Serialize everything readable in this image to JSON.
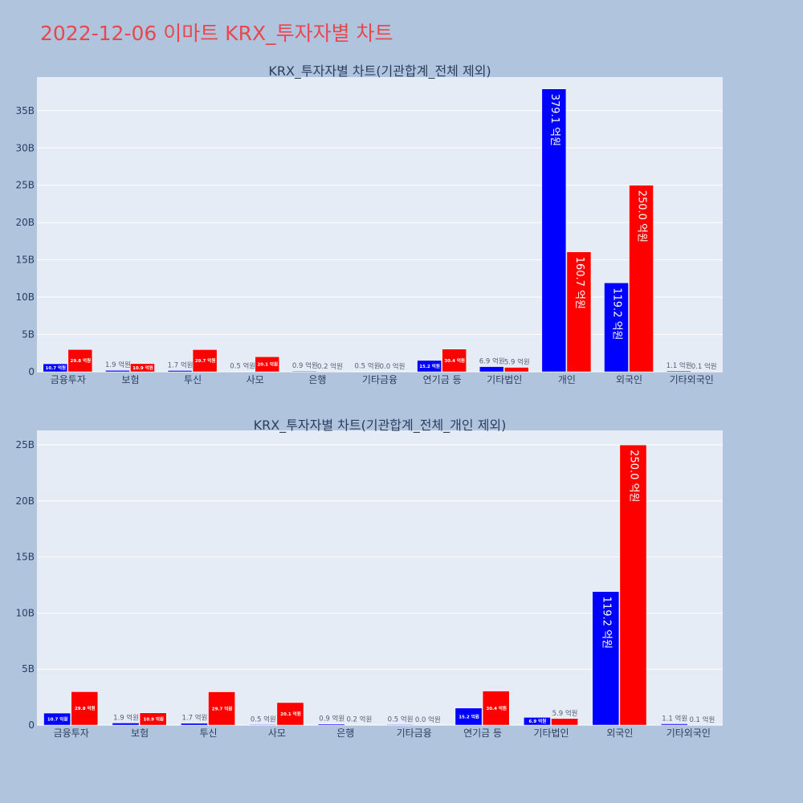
{
  "page": {
    "title": "2022-12-06 이마트 KRX_투자자별 차트"
  },
  "colors": {
    "buy": "#0000ff",
    "sell": "#ff0000",
    "plot_bg": "#e5ecf6",
    "page_bg": "#b0c4de",
    "title": "#e8474f"
  },
  "chart_data": [
    {
      "type": "bar",
      "title": "KRX_투자자별 차트(기관합계_전체 제외)",
      "categories": [
        "금융투자",
        "보험",
        "투신",
        "사모",
        "은행",
        "기타금융",
        "연기금 등",
        "기타법인",
        "개인",
        "외국인",
        "기타외국인"
      ],
      "series": [
        {
          "values": [
            1.07,
            0.19,
            0.17,
            0.05,
            0.09,
            0.05,
            1.52,
            0.69,
            37.91,
            11.92,
            0.11
          ],
          "labels": [
            "10.7 억원",
            "1.9 억원",
            "1.7 억원",
            "0.5 억원",
            "0.9 억원",
            "0.5 억원",
            "15.2 억원",
            "6.9 억원",
            "379.1 억원",
            "119.2 억원",
            "1.1 억원"
          ]
        },
        {
          "values": [
            2.98,
            1.09,
            2.97,
            2.01,
            0.02,
            0.0,
            3.04,
            0.59,
            16.07,
            25.0,
            0.01
          ],
          "labels": [
            "29.8 억원",
            "10.9 억원",
            "29.7 억원",
            "20.1 억원",
            "0.2 억원",
            "0.0 억원",
            "30.4 억원",
            "5.9 억원",
            "160.7 억원",
            "250.0 억원",
            "0.1 억원"
          ]
        }
      ],
      "yticks": [
        0,
        5,
        10,
        15,
        20,
        25,
        30,
        35
      ],
      "ytick_labels": [
        "0",
        "5B",
        "10B",
        "15B",
        "20B",
        "25B",
        "30B",
        "35B"
      ],
      "ylim": [
        0,
        39.5
      ],
      "grid": true
    },
    {
      "type": "bar",
      "title": "KRX_투자자별 차트(기관합계_전체_개인 제외)",
      "categories": [
        "금융투자",
        "보험",
        "투신",
        "사모",
        "은행",
        "기타금융",
        "연기금 등",
        "기타법인",
        "외국인",
        "기타외국인"
      ],
      "series": [
        {
          "values": [
            1.07,
            0.19,
            0.17,
            0.05,
            0.09,
            0.05,
            1.52,
            0.69,
            11.92,
            0.11
          ],
          "labels": [
            "10.7 억원",
            "1.9 억원",
            "1.7 억원",
            "0.5 억원",
            "0.9 억원",
            "0.5 억원",
            "15.2 억원",
            "6.9 억원",
            "119.2 억원",
            "1.1 억원"
          ]
        },
        {
          "values": [
            2.98,
            1.09,
            2.97,
            2.01,
            0.02,
            0.0,
            3.04,
            0.59,
            25.0,
            0.01
          ],
          "labels": [
            "29.8 억원",
            "10.9 억원",
            "29.7 억원",
            "20.1 억원",
            "0.2 억원",
            "0.0 억원",
            "30.4 억원",
            "5.9 억원",
            "250.0 억원",
            "0.1 억원"
          ]
        }
      ],
      "yticks": [
        0,
        5,
        10,
        15,
        20,
        25
      ],
      "ytick_labels": [
        "0",
        "5B",
        "10B",
        "15B",
        "20B",
        "25B"
      ],
      "ylim": [
        0,
        26.3
      ],
      "grid": true
    }
  ]
}
